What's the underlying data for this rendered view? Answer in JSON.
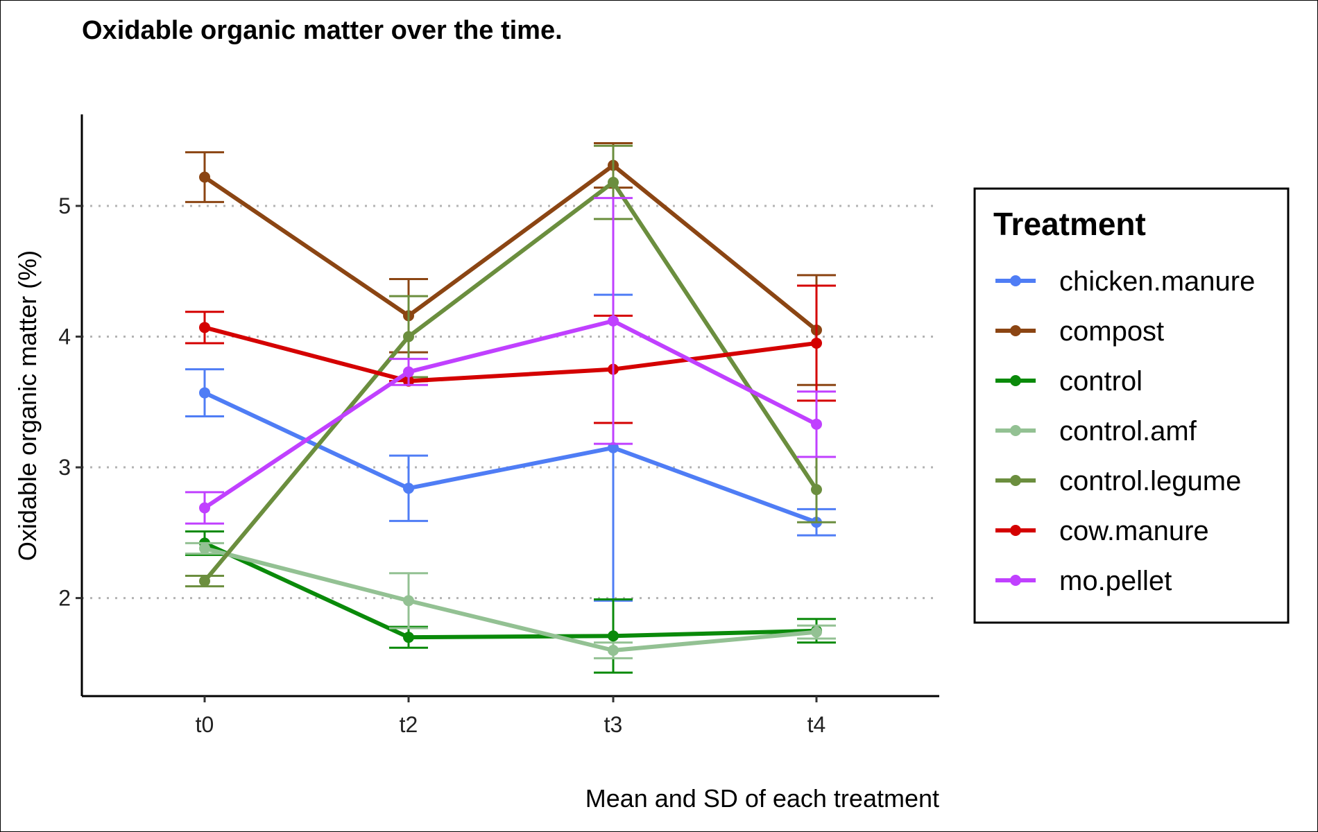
{
  "chart_data": {
    "type": "line",
    "title": "Oxidable organic matter over the time.",
    "xlabel": "Mean and SD of each treatment",
    "ylabel": "Oxidable organic matter (%)",
    "categories": [
      "t0",
      "t2",
      "t3",
      "t4"
    ],
    "ylim": [
      1.25,
      5.7
    ],
    "yticks": [
      2,
      3,
      4,
      5
    ],
    "grid": "horizontal-dotted",
    "legend": {
      "title": "Treatment",
      "placement": "right"
    },
    "series": [
      {
        "name": "chicken.manure",
        "color": "#4F7DF5",
        "values": [
          3.57,
          2.84,
          3.15,
          2.58
        ],
        "sd": [
          0.18,
          0.25,
          1.17,
          0.1
        ]
      },
      {
        "name": "compost",
        "color": "#8B4513",
        "values": [
          5.22,
          4.16,
          5.31,
          4.05
        ],
        "sd": [
          0.19,
          0.28,
          0.17,
          0.42
        ]
      },
      {
        "name": "control",
        "color": "#0A8A0A",
        "values": [
          2.42,
          1.7,
          1.71,
          1.75
        ],
        "sd": [
          0.09,
          0.08,
          0.28,
          0.09
        ]
      },
      {
        "name": "control.amf",
        "color": "#93C193",
        "values": [
          2.38,
          1.98,
          1.6,
          1.74
        ],
        "sd": [
          0.04,
          0.21,
          0.06,
          0.05
        ]
      },
      {
        "name": "control.legume",
        "color": "#6B8E3E",
        "values": [
          2.13,
          4.0,
          5.18,
          2.83
        ],
        "sd": [
          0.04,
          0.31,
          0.28,
          0.25
        ]
      },
      {
        "name": "cow.manure",
        "color": "#D40000",
        "values": [
          4.07,
          3.66,
          3.75,
          3.95
        ],
        "sd": [
          0.12,
          0.0,
          0.41,
          0.44
        ]
      },
      {
        "name": "mo.pellet",
        "color": "#C040FF",
        "values": [
          2.69,
          3.73,
          4.12,
          3.33
        ],
        "sd": [
          0.12,
          0.1,
          0.94,
          0.25
        ]
      }
    ]
  }
}
